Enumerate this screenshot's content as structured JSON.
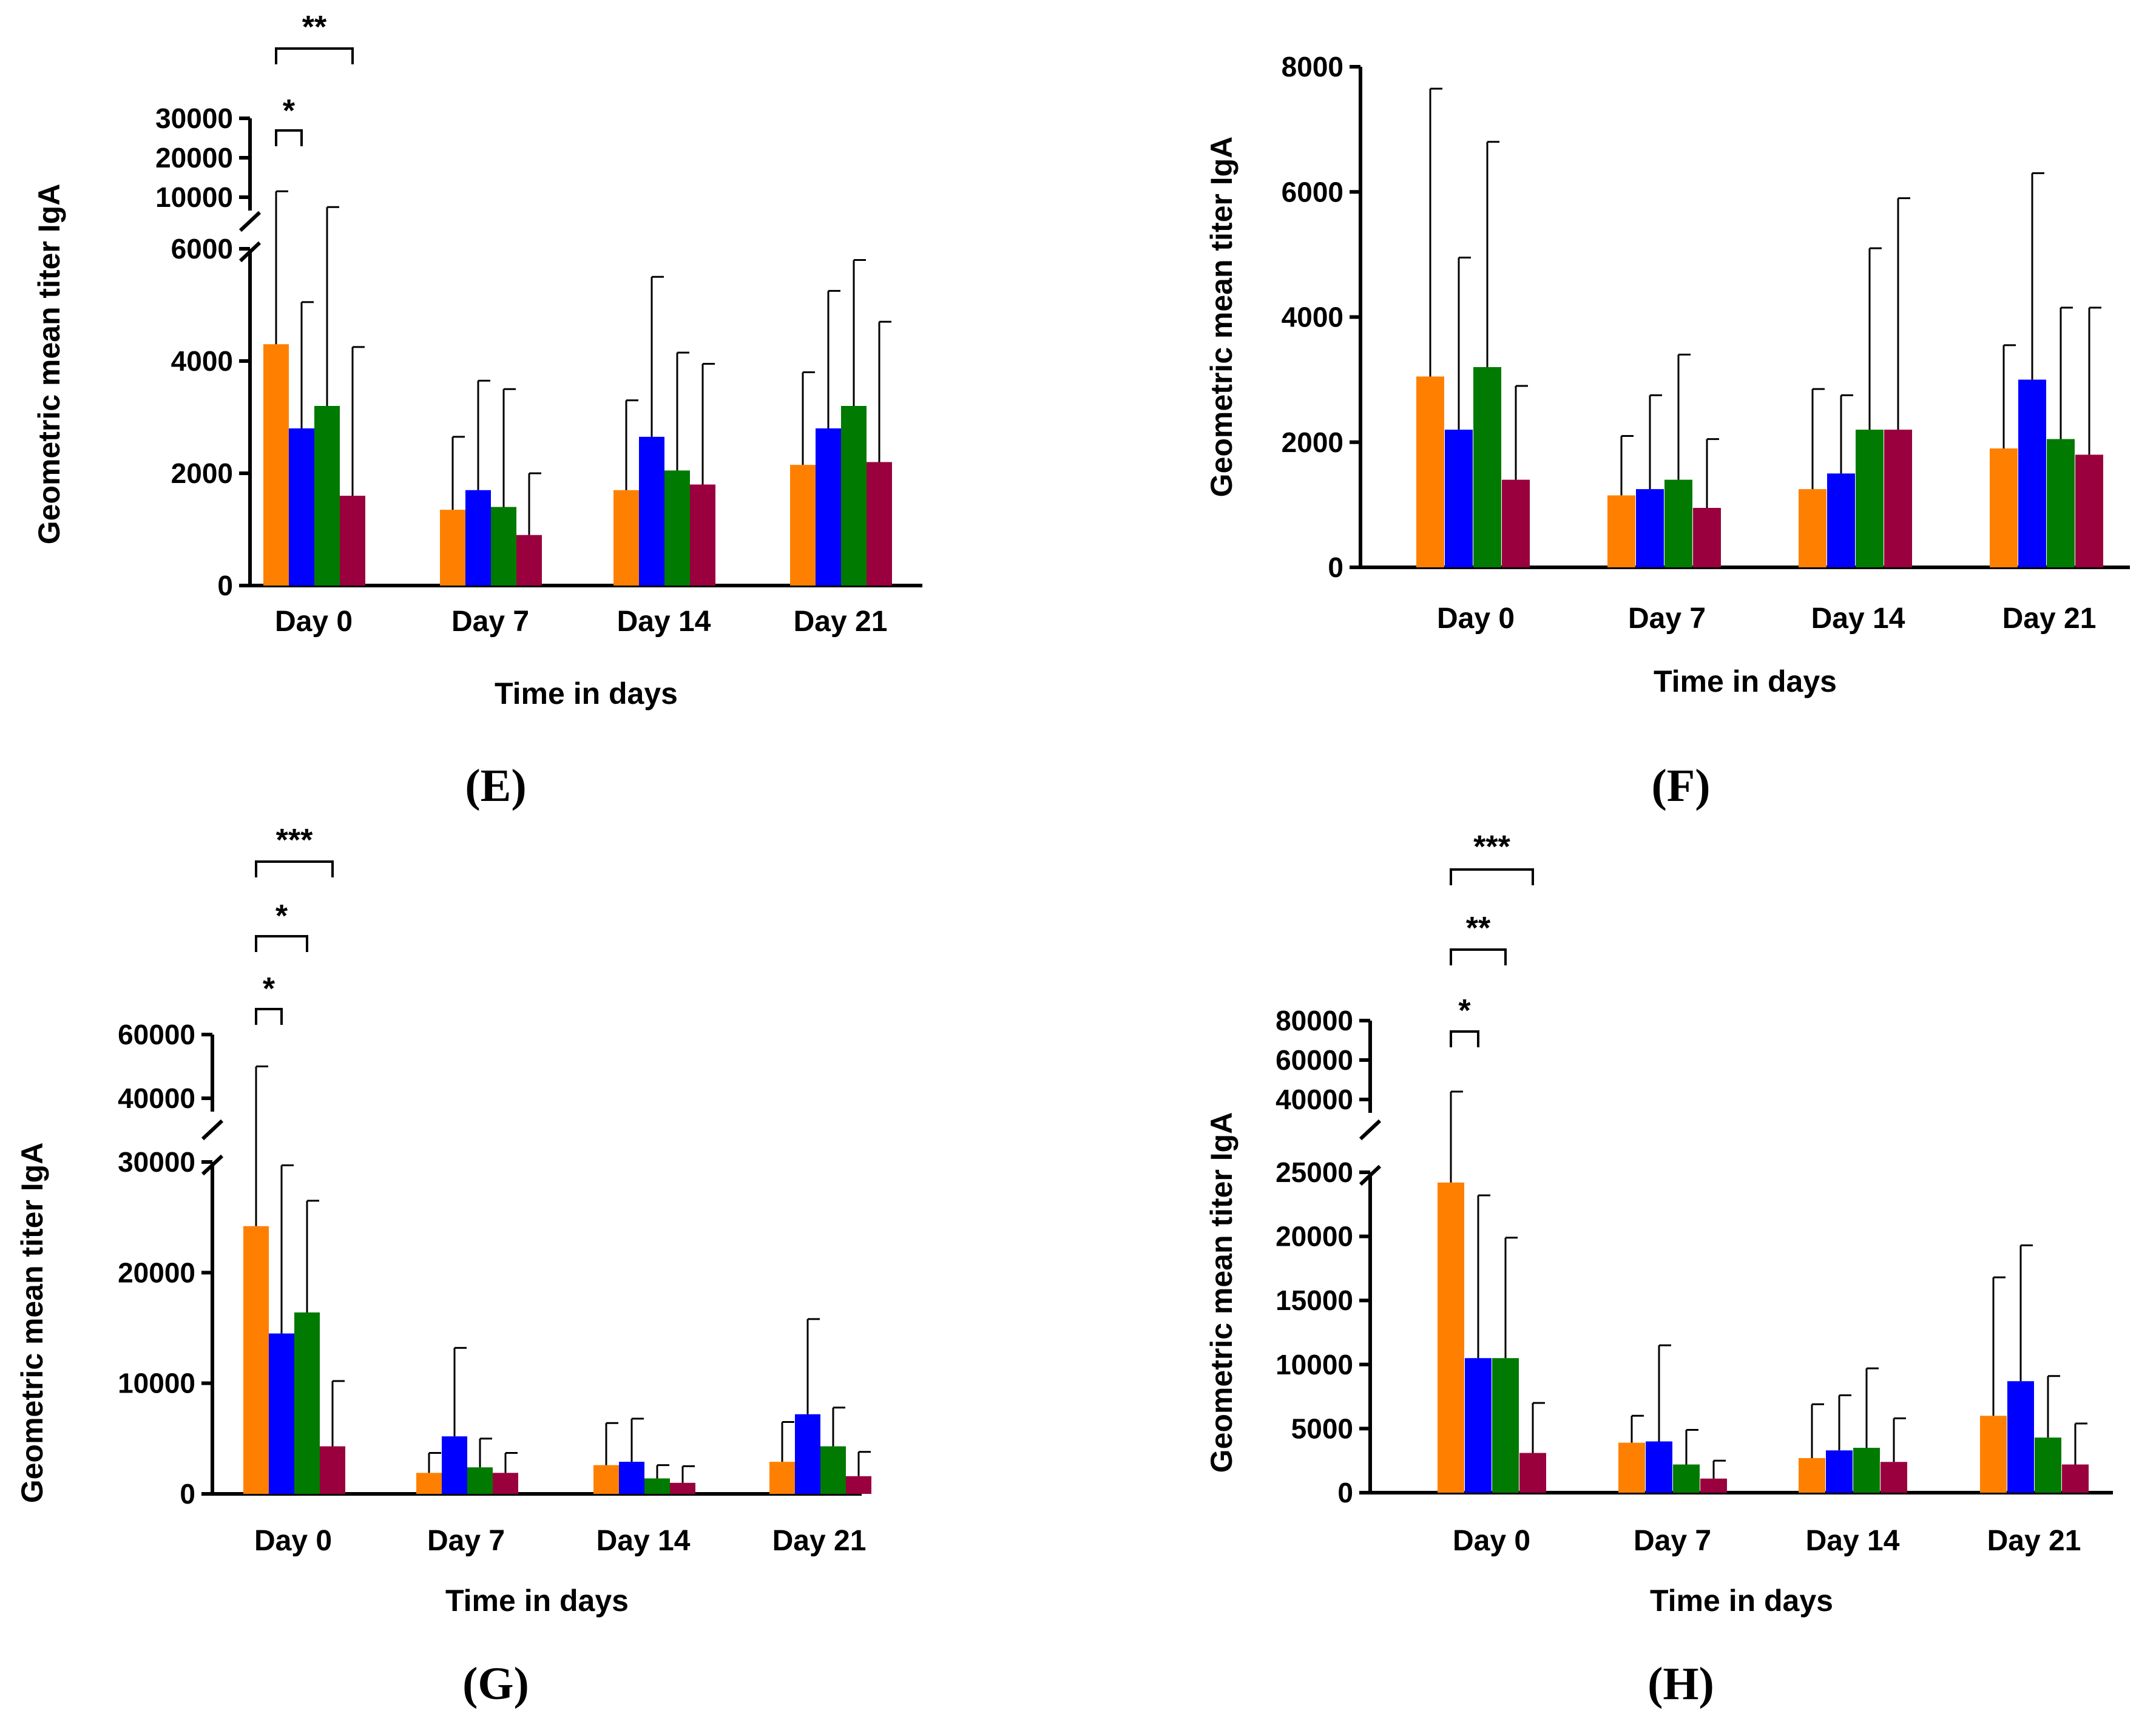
{
  "colors": {
    "series": [
      "#FF8000",
      "#0000FF",
      "#007A00",
      "#99003D"
    ],
    "axis": "#000000"
  },
  "chart_data": [
    {
      "panel": "E",
      "panel_label": "(E)",
      "type": "bar",
      "ylabel": "Geometric mean titer IgA",
      "xlabel": "Time in days",
      "categories": [
        "Day 0",
        "Day 7",
        "Day 14",
        "Day 21"
      ],
      "ylim": [
        0,
        6000
      ],
      "yticks": [
        0,
        2000,
        4000,
        6000
      ],
      "broken_axis": {
        "upper_ticks": [
          10000,
          20000,
          30000
        ]
      },
      "series": [
        {
          "values": [
            4300,
            1350,
            1700,
            2150
          ],
          "errors_upper": [
            11500,
            2650,
            3300,
            3800
          ]
        },
        {
          "values": [
            2800,
            1700,
            2650,
            2800
          ],
          "errors_upper": [
            5050,
            3650,
            5500,
            5250
          ]
        },
        {
          "values": [
            3200,
            1400,
            2050,
            3200
          ],
          "errors_upper": [
            7500,
            3500,
            4150,
            5800
          ]
        },
        {
          "values": [
            1600,
            900,
            1800,
            2200
          ],
          "errors_upper": [
            4250,
            2000,
            3950,
            4700
          ]
        }
      ],
      "significance": [
        {
          "label": "*",
          "from_series": 1,
          "to_series": 2,
          "category": 0
        },
        {
          "label": "**",
          "from_series": 1,
          "to_series": 4,
          "category": 0
        }
      ]
    },
    {
      "panel": "F",
      "panel_label": "(F)",
      "type": "bar",
      "ylabel": "Geometric mean titer IgA",
      "xlabel": "Time in days",
      "categories": [
        "Day 0",
        "Day 7",
        "Day 14",
        "Day 21"
      ],
      "ylim": [
        0,
        8000
      ],
      "yticks": [
        0,
        2000,
        4000,
        6000,
        8000
      ],
      "series": [
        {
          "values": [
            3050,
            1150,
            1250,
            1900
          ],
          "errors_upper": [
            7650,
            2100,
            2850,
            3550
          ]
        },
        {
          "values": [
            2200,
            1250,
            1500,
            3000
          ],
          "errors_upper": [
            4950,
            2750,
            2750,
            6300
          ]
        },
        {
          "values": [
            3200,
            1400,
            2200,
            2050
          ],
          "errors_upper": [
            6800,
            3400,
            5100,
            4150
          ]
        },
        {
          "values": [
            1400,
            950,
            2200,
            1800
          ],
          "errors_upper": [
            2900,
            2050,
            5900,
            4150
          ]
        }
      ],
      "significance": []
    },
    {
      "panel": "G",
      "panel_label": "(G)",
      "type": "bar",
      "ylabel": "Geometric mean titer IgA",
      "xlabel": "Time in days",
      "categories": [
        "Day 0",
        "Day 7",
        "Day 14",
        "Day 21"
      ],
      "ylim": [
        0,
        30000
      ],
      "yticks": [
        0,
        10000,
        20000,
        30000
      ],
      "broken_axis": {
        "upper_ticks": [
          40000,
          60000
        ]
      },
      "series": [
        {
          "values": [
            24200,
            1900,
            2600,
            2900
          ],
          "errors_upper": [
            50000,
            3700,
            6400,
            6500
          ]
        },
        {
          "values": [
            14500,
            5200,
            2900,
            7200
          ],
          "errors_upper": [
            29700,
            13200,
            6800,
            15800
          ]
        },
        {
          "values": [
            16400,
            2400,
            1400,
            4300
          ],
          "errors_upper": [
            26500,
            5000,
            2600,
            7800
          ]
        },
        {
          "values": [
            4300,
            1900,
            1000,
            1600
          ],
          "errors_upper": [
            10200,
            3700,
            2500,
            3800
          ]
        }
      ],
      "significance": [
        {
          "label": "*",
          "from_series": 1,
          "to_series": 2,
          "category": 0
        },
        {
          "label": "*",
          "from_series": 1,
          "to_series": 3,
          "category": 0
        },
        {
          "label": "***",
          "from_series": 1,
          "to_series": 4,
          "category": 0
        }
      ]
    },
    {
      "panel": "H",
      "panel_label": "(H)",
      "type": "bar",
      "ylabel": "Geometric mean titer IgA",
      "xlabel": "Time in days",
      "categories": [
        "Day 0",
        "Day 7",
        "Day 14",
        "Day 21"
      ],
      "ylim": [
        0,
        25000
      ],
      "yticks": [
        0,
        5000,
        10000,
        15000,
        20000,
        25000
      ],
      "broken_axis": {
        "upper_ticks": [
          40000,
          60000,
          80000
        ]
      },
      "series": [
        {
          "values": [
            24200,
            3900,
            2700,
            6000
          ],
          "errors_upper": [
            44000,
            6000,
            6900,
            16800
          ]
        },
        {
          "values": [
            10500,
            4000,
            3300,
            8700
          ],
          "errors_upper": [
            23200,
            11500,
            7600,
            19300
          ]
        },
        {
          "values": [
            10500,
            2200,
            3500,
            4300
          ],
          "errors_upper": [
            19900,
            4900,
            9700,
            9100
          ]
        },
        {
          "values": [
            3100,
            1100,
            2400,
            2200
          ],
          "errors_upper": [
            7000,
            2500,
            5800,
            5400
          ]
        }
      ],
      "significance": [
        {
          "label": "*",
          "from_series": 1,
          "to_series": 2,
          "category": 0
        },
        {
          "label": "**",
          "from_series": 1,
          "to_series": 3,
          "category": 0
        },
        {
          "label": "***",
          "from_series": 1,
          "to_series": 4,
          "category": 0
        }
      ]
    }
  ]
}
